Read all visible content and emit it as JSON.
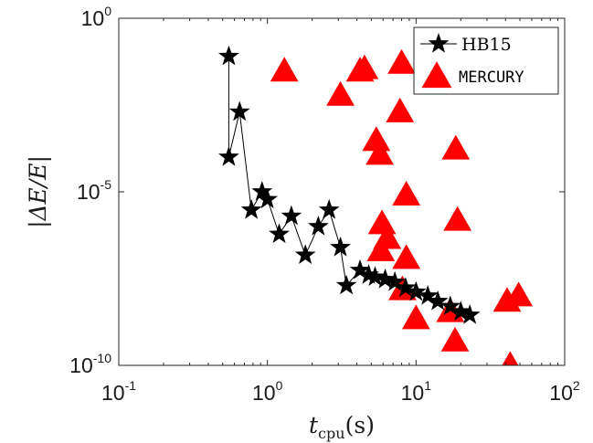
{
  "chart_data": {
    "type": "scatter",
    "xlabel": "t_cpu(s)",
    "xlabel_main": "t",
    "xlabel_sub": "cpu",
    "xlabel_unit": "(s)",
    "ylabel": "|ΔE/E|",
    "x_scale": "log",
    "y_scale": "log",
    "xlim": [
      0.1,
      100
    ],
    "ylim": [
      1e-10,
      1
    ],
    "x_ticks": [
      {
        "value": 0.1,
        "base": "10",
        "exp": "-1"
      },
      {
        "value": 1,
        "base": "10",
        "exp": "0"
      },
      {
        "value": 10,
        "base": "10",
        "exp": "1"
      },
      {
        "value": 100,
        "base": "10",
        "exp": "2"
      }
    ],
    "y_ticks": [
      {
        "value": 1e-10,
        "base": "10",
        "exp": "-10"
      },
      {
        "value": 1e-05,
        "base": "10",
        "exp": "-5"
      },
      {
        "value": 1,
        "base": "10",
        "exp": "0"
      }
    ],
    "grid": false,
    "legend_position": "top-right",
    "series": [
      {
        "name": "HB15",
        "marker": "star",
        "line": true,
        "color": "#000000",
        "points": [
          [
            0.55,
            0.08
          ],
          [
            0.55,
            0.0001
          ],
          [
            0.65,
            0.002
          ],
          [
            0.78,
            3e-06
          ],
          [
            0.92,
            1e-05
          ],
          [
            1.0,
            6e-06
          ],
          [
            1.2,
            6e-07
          ],
          [
            1.45,
            2e-06
          ],
          [
            1.8,
            1.5e-07
          ],
          [
            2.2,
            1e-06
          ],
          [
            2.6,
            3e-06
          ],
          [
            3.1,
            2.5e-07
          ],
          [
            3.4,
            2e-08
          ],
          [
            4.2,
            5.5e-08
          ],
          [
            4.8,
            4e-08
          ],
          [
            5.3,
            3.5e-08
          ],
          [
            6.2,
            3e-08
          ],
          [
            7.2,
            2.5e-08
          ],
          [
            8.5,
            1.7e-08
          ],
          [
            10.0,
            1.3e-08
          ],
          [
            12.0,
            1e-08
          ],
          [
            14.0,
            7e-09
          ],
          [
            17.0,
            5e-09
          ],
          [
            20.0,
            3.5e-09
          ],
          [
            23.0,
            2.8e-09
          ]
        ]
      },
      {
        "name": "MERCURY",
        "marker": "triangle",
        "line": false,
        "color": "#ff0000",
        "points": [
          [
            1.3,
            0.03
          ],
          [
            3.1,
            0.006
          ],
          [
            4.2,
            0.03
          ],
          [
            4.5,
            0.035
          ],
          [
            8.0,
            0.05
          ],
          [
            7.8,
            0.002
          ],
          [
            5.4,
            0.0003
          ],
          [
            5.7,
            0.00012
          ],
          [
            8.6,
            8e-06
          ],
          [
            18.5,
            0.00017
          ],
          [
            19.0,
            1.5e-06
          ],
          [
            5.9,
            1.2e-06
          ],
          [
            6.4,
            4.5e-07
          ],
          [
            5.8,
            2e-07
          ],
          [
            8.6,
            1.2e-07
          ],
          [
            8.1,
            1.5e-08
          ],
          [
            10.0,
            2.2e-09
          ],
          [
            17.0,
            3.5e-09
          ],
          [
            18.3,
            5e-10
          ],
          [
            41.0,
            7e-09
          ],
          [
            49.0,
            1e-08
          ],
          [
            43.0,
            1e-10
          ]
        ]
      }
    ]
  }
}
